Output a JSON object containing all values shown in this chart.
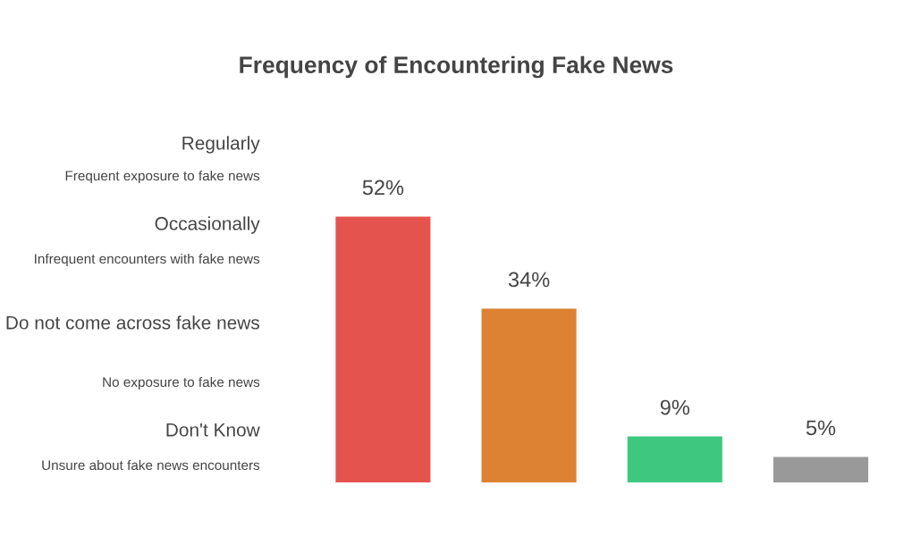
{
  "chart_data": {
    "type": "bar",
    "title": "Frequency of Encountering Fake News",
    "categories": [
      null,
      null,
      null,
      null
    ],
    "values": [
      52,
      34,
      9,
      5
    ],
    "colors": [
      "#e5534f",
      "#dd8232",
      "#3ec77f",
      "#999999"
    ],
    "value_labels": [
      "52%",
      "34%",
      "9%",
      "5%"
    ],
    "annotations": [
      "Regularly",
      "Frequent exposure to fake news",
      "Occasionally",
      "Infrequent encounters with fake news",
      "Do not come across fake news",
      "No exposure to fake news",
      "Don't Know",
      "Unsure about fake news encounters"
    ]
  }
}
